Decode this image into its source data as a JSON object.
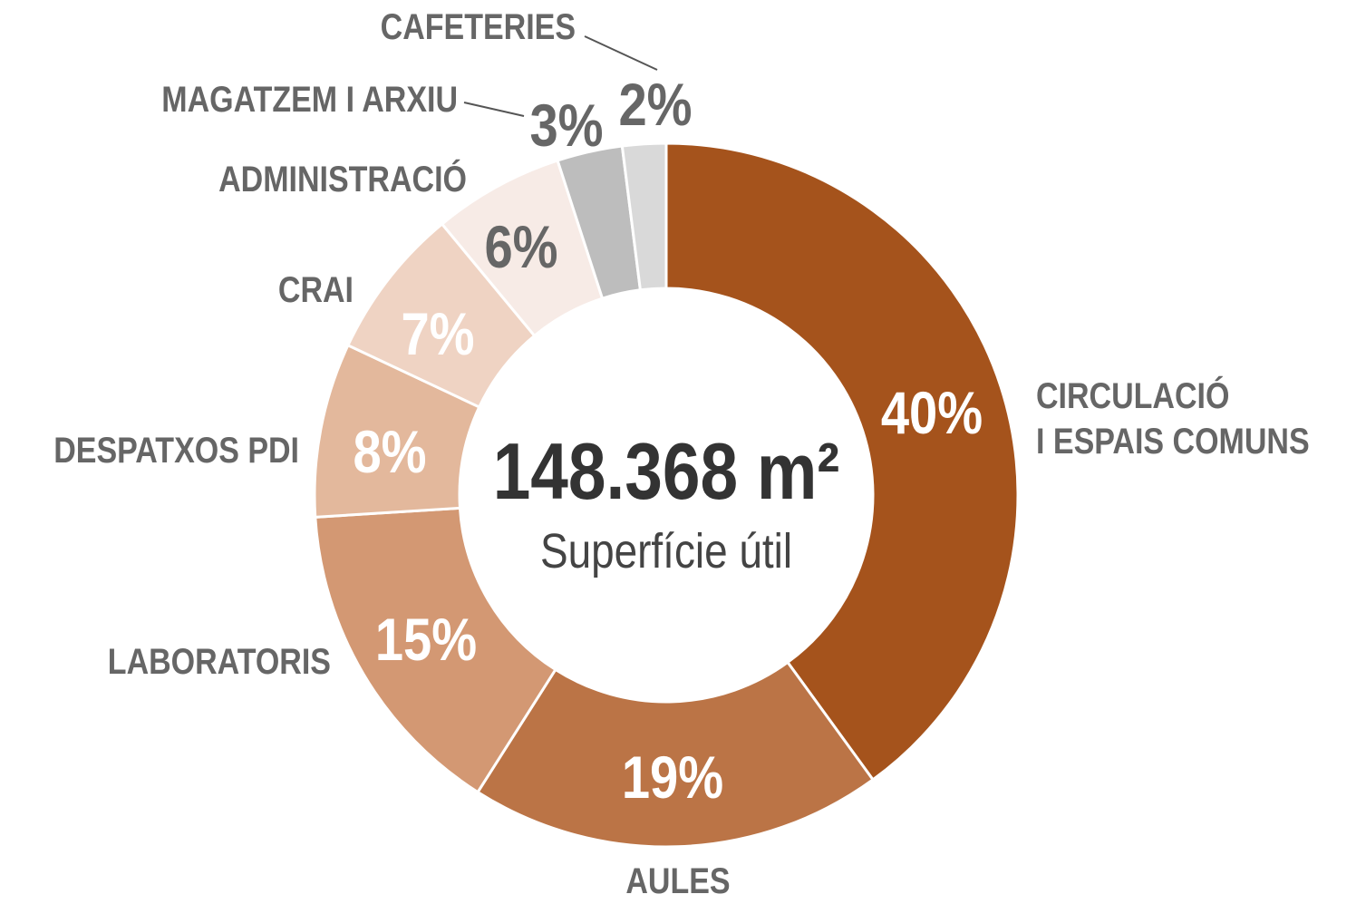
{
  "chart_data": {
    "type": "donut",
    "center_value": "148.368 m²",
    "center_label": "Superfície útil",
    "categories": [
      "CIRCULACIÓ\nI ESPAIS COMUNS",
      "AULES",
      "LABORATORIS",
      "DESPATXOS PDI",
      "CRAI",
      "ADMINISTRACIÓ",
      "MAGATZEM I ARXIU",
      "CAFETERIES"
    ],
    "values": [
      40,
      19,
      15,
      8,
      7,
      6,
      3,
      2
    ],
    "value_labels": [
      "40%",
      "19%",
      "15%",
      "8%",
      "7%",
      "6%",
      "3%",
      "2%"
    ],
    "colors": [
      "#a5531c",
      "#bb7446",
      "#d39873",
      "#e3b89c",
      "#efd3c3",
      "#f7ebe6",
      "#bdbdbd",
      "#d9d9d9"
    ]
  }
}
